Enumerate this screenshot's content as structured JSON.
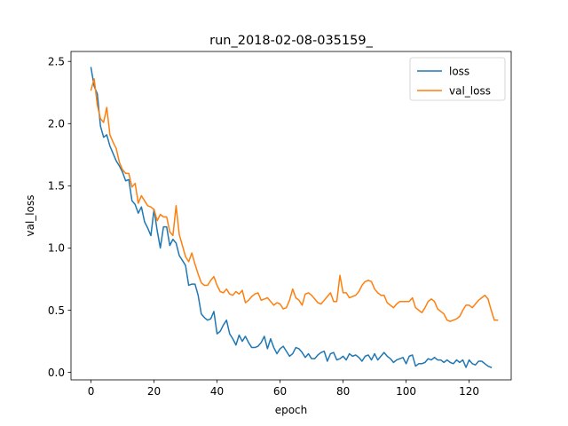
{
  "chart_data": {
    "type": "line",
    "title": "run_2018-02-08-035159_",
    "xlabel": "epoch",
    "ylabel": "val_loss",
    "xlim": [
      -6.35,
      133.35
    ],
    "ylim": [
      -0.06,
      2.58
    ],
    "x_ticks": [
      0,
      20,
      40,
      60,
      80,
      100,
      120
    ],
    "y_ticks": [
      0.0,
      0.5,
      1.0,
      1.5,
      2.0,
      2.5
    ],
    "x_tick_labels": [
      "0",
      "20",
      "40",
      "60",
      "80",
      "100",
      "120"
    ],
    "y_tick_labels": [
      "0.0",
      "0.5",
      "1.0",
      "1.5",
      "2.0",
      "2.5"
    ],
    "grid": false,
    "legend_position": "upper right",
    "x_start": 0,
    "x_step": 1,
    "series": [
      {
        "name": "loss",
        "color": "#1f77b4",
        "values": [
          2.45,
          2.3,
          2.24,
          1.98,
          1.89,
          1.91,
          1.82,
          1.76,
          1.7,
          1.66,
          1.61,
          1.54,
          1.55,
          1.38,
          1.35,
          1.28,
          1.33,
          1.21,
          1.16,
          1.1,
          1.31,
          1.14,
          1.0,
          1.17,
          1.17,
          1.02,
          1.07,
          1.04,
          0.94,
          0.9,
          0.86,
          0.7,
          0.71,
          0.71,
          0.62,
          0.47,
          0.44,
          0.42,
          0.43,
          0.49,
          0.31,
          0.33,
          0.38,
          0.42,
          0.31,
          0.27,
          0.22,
          0.3,
          0.25,
          0.29,
          0.24,
          0.2,
          0.2,
          0.21,
          0.24,
          0.29,
          0.19,
          0.27,
          0.2,
          0.15,
          0.19,
          0.21,
          0.17,
          0.13,
          0.15,
          0.2,
          0.19,
          0.16,
          0.12,
          0.15,
          0.11,
          0.11,
          0.14,
          0.16,
          0.17,
          0.09,
          0.15,
          0.16,
          0.1,
          0.11,
          0.13,
          0.1,
          0.15,
          0.13,
          0.14,
          0.12,
          0.09,
          0.13,
          0.14,
          0.1,
          0.15,
          0.1,
          0.13,
          0.16,
          0.13,
          0.11,
          0.08,
          0.1,
          0.11,
          0.12,
          0.07,
          0.13,
          0.14,
          0.05,
          0.07,
          0.07,
          0.08,
          0.11,
          0.1,
          0.12,
          0.1,
          0.1,
          0.08,
          0.1,
          0.08,
          0.07,
          0.1,
          0.08,
          0.1,
          0.04,
          0.1,
          0.07,
          0.06,
          0.09,
          0.09,
          0.07,
          0.05,
          0.04
        ]
      },
      {
        "name": "val_loss",
        "color": "#ff7f0e",
        "values": [
          2.27,
          2.36,
          2.15,
          2.04,
          2.01,
          2.13,
          1.91,
          1.85,
          1.8,
          1.69,
          1.63,
          1.6,
          1.6,
          1.49,
          1.52,
          1.36,
          1.42,
          1.38,
          1.34,
          1.33,
          1.31,
          1.22,
          1.27,
          1.25,
          1.25,
          1.13,
          1.1,
          1.34,
          1.11,
          1.02,
          0.93,
          0.89,
          0.96,
          0.87,
          0.79,
          0.72,
          0.7,
          0.7,
          0.74,
          0.77,
          0.7,
          0.65,
          0.64,
          0.67,
          0.63,
          0.62,
          0.65,
          0.63,
          0.66,
          0.56,
          0.58,
          0.61,
          0.63,
          0.64,
          0.58,
          0.59,
          0.6,
          0.57,
          0.54,
          0.56,
          0.55,
          0.51,
          0.52,
          0.58,
          0.67,
          0.6,
          0.58,
          0.54,
          0.63,
          0.64,
          0.62,
          0.59,
          0.56,
          0.55,
          0.58,
          0.61,
          0.64,
          0.57,
          0.57,
          0.78,
          0.64,
          0.64,
          0.6,
          0.61,
          0.62,
          0.65,
          0.7,
          0.73,
          0.74,
          0.73,
          0.67,
          0.64,
          0.62,
          0.62,
          0.56,
          0.54,
          0.52,
          0.55,
          0.57,
          0.57,
          0.57,
          0.57,
          0.6,
          0.52,
          0.5,
          0.48,
          0.52,
          0.57,
          0.59,
          0.57,
          0.51,
          0.49,
          0.47,
          0.42,
          0.41,
          0.42,
          0.43,
          0.45,
          0.5,
          0.54,
          0.54,
          0.52,
          0.55,
          0.58,
          0.6,
          0.62,
          0.59,
          0.5,
          0.42,
          0.42
        ]
      }
    ]
  }
}
